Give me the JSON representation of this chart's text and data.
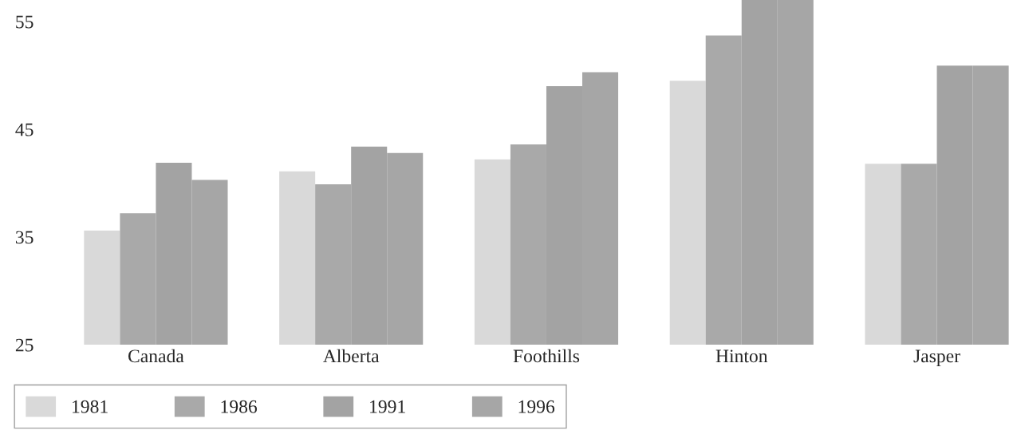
{
  "chart_data": {
    "type": "bar",
    "categories": [
      "Canada",
      "Alberta",
      "Foothills",
      "Hinton",
      "Jasper"
    ],
    "series": [
      {
        "name": "1981",
        "color": "#d9d9d9",
        "values": [
          35.6,
          41.1,
          42.2,
          49.5,
          41.8
        ]
      },
      {
        "name": "1986",
        "color": "#a9a9a9",
        "values": [
          37.2,
          39.9,
          43.6,
          53.7,
          41.8
        ]
      },
      {
        "name": "1991",
        "color": "#a3a3a3",
        "values": [
          41.9,
          43.4,
          49.0,
          57,
          50.9
        ]
      },
      {
        "name": "1996",
        "color": "#a6a6a6",
        "values": [
          40.3,
          42.8,
          50.3,
          57,
          50.9
        ]
      }
    ],
    "ylim": [
      25,
      57
    ],
    "yticks": [
      25,
      35,
      45,
      55
    ],
    "grid": false,
    "legend": "bottom left"
  }
}
